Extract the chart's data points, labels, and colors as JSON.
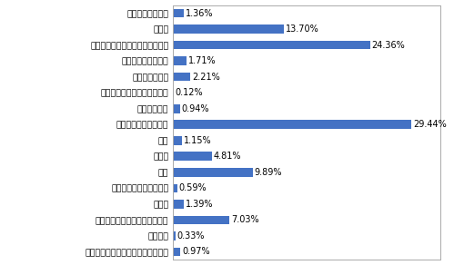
{
  "categories": [
    "租赁和商务服务业",
    "制造业",
    "信息传输、软件和信息技术服务业",
    "文化、体育和娱乐业",
    "卫生和社会工作",
    "水利、环境和公共设施管理业",
    "批发和零售业",
    "科学研究和技术服务业",
    "军队",
    "金融业",
    "教育",
    "交通运输、仓储和邮政业",
    "建筑业",
    "公共管理、社会保障和社会组织",
    "房地产业",
    "电力、热力、燃气及水生产和供应业"
  ],
  "values": [
    1.36,
    13.7,
    24.36,
    1.71,
    2.21,
    0.12,
    0.94,
    29.44,
    1.15,
    4.81,
    9.89,
    0.59,
    1.39,
    7.03,
    0.33,
    0.97
  ],
  "labels": [
    "1.36%",
    "13.70%",
    "24.36%",
    "1.71%",
    "2.21%",
    "0.12%",
    "0.94%",
    "29.44%",
    "1.15%",
    "4.81%",
    "9.89%",
    "0.59%",
    "1.39%",
    "7.03%",
    "0.33%",
    "0.97%"
  ],
  "bar_color": "#4472C4",
  "background_color": "#FFFFFF",
  "grid_color": "#D9D9D9",
  "text_color": "#000000",
  "xlim": [
    0,
    33
  ],
  "label_fontsize": 7.0,
  "tick_fontsize": 6.8
}
